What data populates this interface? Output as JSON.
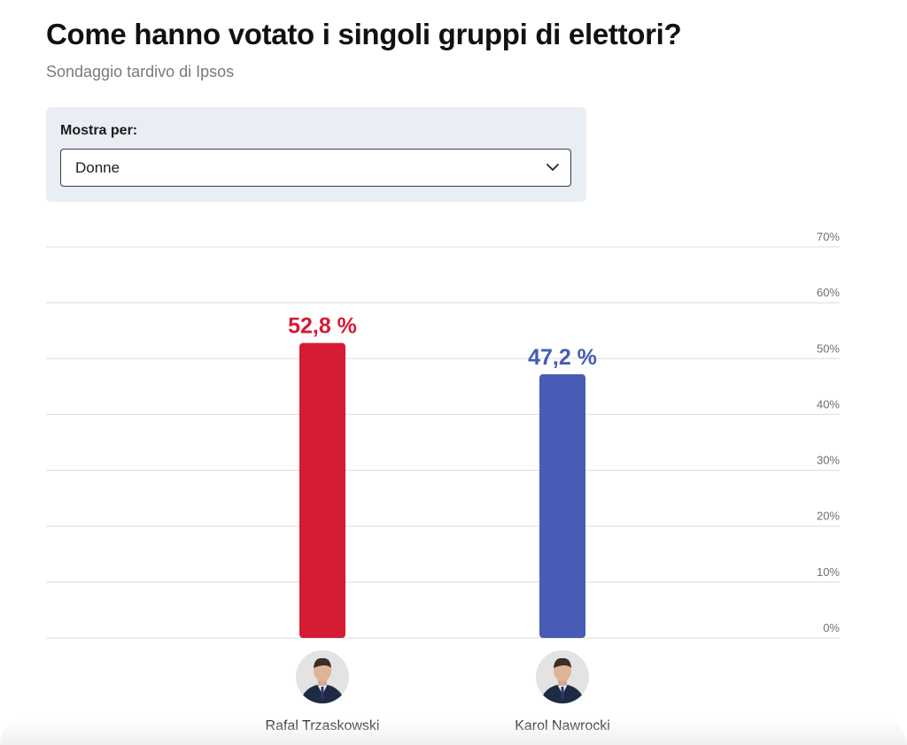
{
  "header": {
    "title": "Come hanno votato i singoli gruppi di elettori?",
    "subtitle": "Sondaggio tardivo di Ipsos"
  },
  "filter": {
    "label": "Mostra per:",
    "selected": "Donne",
    "chevron_icon": "chevron-down-icon"
  },
  "chart_data": {
    "type": "bar",
    "categories": [
      "Rafal Trzaskowski",
      "Karol Nawrocki"
    ],
    "values": [
      52.8,
      47.2
    ],
    "value_labels": [
      "52,8 %",
      "47,2 %"
    ],
    "colors": [
      "#d61b35",
      "#465cb5"
    ],
    "ylim": [
      0,
      70
    ],
    "ytick_labels": [
      "0%",
      "10%",
      "20%",
      "30%",
      "40%",
      "50%",
      "60%",
      "70%"
    ],
    "ytick_values": [
      0,
      10,
      20,
      30,
      40,
      50,
      60,
      70
    ],
    "grid": true,
    "y_axis_side": "right",
    "category_icons": [
      "avatar-trzaskowski",
      "avatar-nawrocki"
    ]
  }
}
